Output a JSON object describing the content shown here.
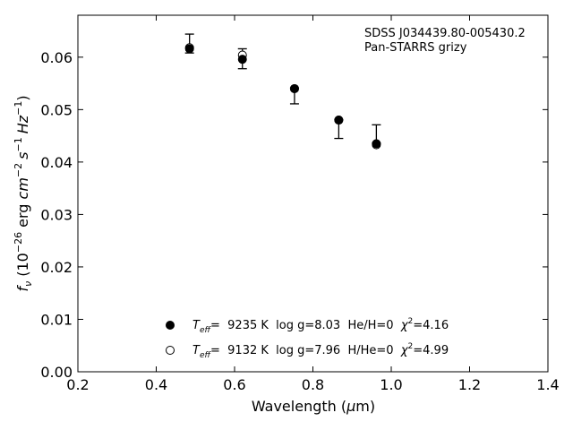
{
  "chart_data": {
    "type": "scatter",
    "xlabel": "Wavelength (μm)",
    "ylabel": "f_ν (10^-26 erg cm^-2 s^-1 Hz^-1)",
    "xlim": [
      0.2,
      1.4
    ],
    "ylim": [
      0.0,
      0.068
    ],
    "x_ticks": [
      0.2,
      0.4,
      0.6,
      0.8,
      1.0,
      1.2,
      1.4
    ],
    "x_tick_labels": [
      "0.2",
      "0.4",
      "0.6",
      "0.8",
      "1.0",
      "1.2",
      "1.4"
    ],
    "y_ticks": [
      0.0,
      0.01,
      0.02,
      0.03,
      0.04,
      0.05,
      0.06
    ],
    "y_tick_labels": [
      "0.00",
      "0.01",
      "0.02",
      "0.03",
      "0.04",
      "0.05",
      "0.06"
    ],
    "grid": false,
    "annotation": {
      "line1": "SDSS J034439.80-005430.2",
      "line2": "Pan-STARRS grizy"
    },
    "observed": {
      "x": [
        0.485,
        0.62,
        0.753,
        0.866,
        0.962
      ],
      "y": [
        0.0626,
        0.0597,
        0.0538,
        0.0458,
        0.044
      ],
      "yerr_low": [
        0.0018,
        0.0019,
        0.0027,
        0.0013,
        0.0004
      ],
      "yerr_high": [
        0.0018,
        0.0019,
        0.0003,
        0.0023,
        0.0031
      ]
    },
    "series": [
      {
        "marker": "filled",
        "x": [
          0.485,
          0.62,
          0.753,
          0.866,
          0.962
        ],
        "y": [
          0.0616,
          0.0596,
          0.054,
          0.048,
          0.0435
        ]
      },
      {
        "marker": "open",
        "x": [
          0.485,
          0.62,
          0.753,
          0.866,
          0.962
        ],
        "y": [
          0.0618,
          0.0604,
          0.054,
          0.048,
          0.0433
        ]
      }
    ],
    "legend": [
      {
        "marker": "filled",
        "teff_symbol": "T",
        "teff_sub": "eff",
        "text": "=  9235 K  log g=8.03  He/H=0  ",
        "chi_symbol": "χ",
        "chi_sup": "2",
        "chi_value": "=4.16"
      },
      {
        "marker": "open",
        "teff_symbol": "T",
        "teff_sub": "eff",
        "text": "=  9132 K  log g=7.96  H/He=0  ",
        "chi_symbol": "χ",
        "chi_sup": "2",
        "chi_value": "=4.99"
      }
    ],
    "legend_position": "bottom-center"
  },
  "axis_text": {
    "x_main": "Wavelength (",
    "x_mu": "μ",
    "x_unit": "m)",
    "y_f": "f",
    "y_nu": "ν",
    "y_open": " (10",
    "y_exp1": "−26",
    "y_erg": " erg ",
    "y_cm": "cm",
    "y_exp2": "−2",
    "y_s": "s",
    "y_exp3": "−1",
    "y_hz": "Hz",
    "y_exp4": "−1",
    "y_close": ")"
  }
}
